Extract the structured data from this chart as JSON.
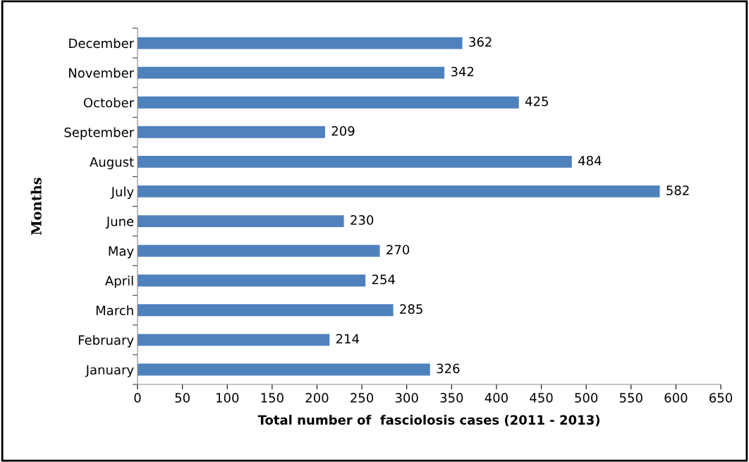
{
  "chart_data": {
    "type": "bar",
    "orientation": "horizontal",
    "xlabel": "Total number of  fasciolosis cases (2011 - 2013)",
    "ylabel": "Months",
    "categories": [
      "December",
      "November",
      "October",
      "September",
      "August",
      "July",
      "June",
      "May",
      "April",
      "March",
      "February",
      "January"
    ],
    "values": [
      362,
      342,
      425,
      209,
      484,
      582,
      230,
      270,
      254,
      285,
      214,
      326
    ],
    "color": "#4f81bd",
    "xlim": [
      0,
      650
    ],
    "xticks": [
      0,
      50,
      100,
      150,
      200,
      250,
      300,
      350,
      400,
      450,
      500,
      550,
      600,
      650
    ],
    "grid": false,
    "data_labels": true
  }
}
